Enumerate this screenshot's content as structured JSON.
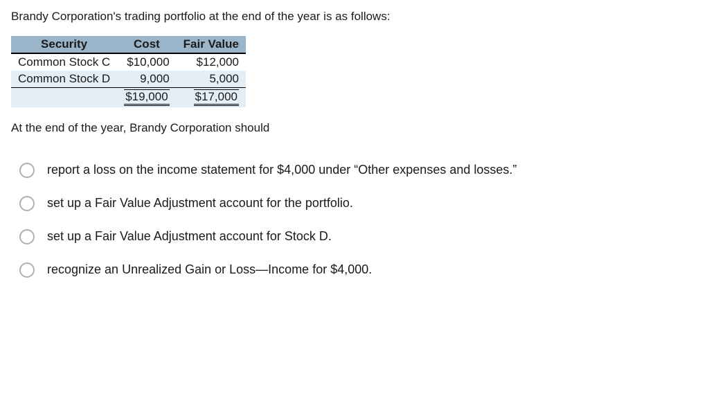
{
  "intro": "Brandy Corporation's trading portfolio at the end of the year is as follows:",
  "table": {
    "headers": {
      "c0": "Security",
      "c1": "Cost",
      "c2": "Fair Value"
    },
    "rows": [
      {
        "security": "Common Stock C",
        "cost": "$10,000",
        "fair": "$12,000"
      },
      {
        "security": "Common Stock D",
        "cost": "9,000",
        "fair": "5,000"
      }
    ],
    "totals": {
      "cost": "$19,000",
      "fair": "$17,000"
    }
  },
  "followup": "At the end of the year, Brandy Corporation should",
  "options": [
    "report a loss on the income statement for $4,000 under “Other expenses and losses.”",
    "set up a Fair Value Adjustment account for the portfolio.",
    "set up a Fair Value Adjustment account for Stock D.",
    "recognize an Unrealized Gain or Loss—Income for $4,000."
  ]
}
